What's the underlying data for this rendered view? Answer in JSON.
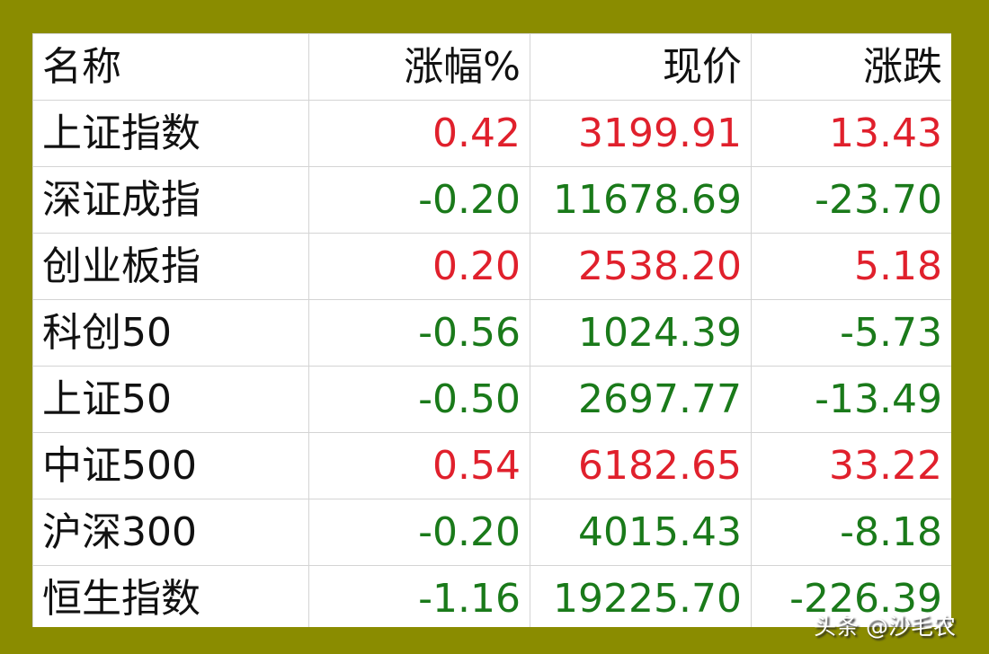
{
  "columns": [
    "名称",
    "涨幅%",
    "现价",
    "涨跌"
  ],
  "rows": [
    {
      "name": "上证指数",
      "pct": "0.42",
      "price": "3199.91",
      "change": "13.43",
      "dir": "up"
    },
    {
      "name": "深证成指",
      "pct": "-0.20",
      "price": "11678.69",
      "change": "-23.70",
      "dir": "down"
    },
    {
      "name": "创业板指",
      "pct": "0.20",
      "price": "2538.20",
      "change": "5.18",
      "dir": "up"
    },
    {
      "name": "科创50",
      "pct": "-0.56",
      "price": "1024.39",
      "change": "-5.73",
      "dir": "down"
    },
    {
      "name": "上证50",
      "pct": "-0.50",
      "price": "2697.77",
      "change": "-13.49",
      "dir": "down"
    },
    {
      "name": "中证500",
      "pct": "0.54",
      "price": "6182.65",
      "change": "33.22",
      "dir": "up"
    },
    {
      "name": "沪深300",
      "pct": "-0.20",
      "price": "4015.43",
      "change": "-8.18",
      "dir": "down"
    },
    {
      "name": "恒生指数",
      "pct": "-1.16",
      "price": "19225.70",
      "change": "-226.39",
      "dir": "down"
    }
  ],
  "colors": {
    "up": "#e0202c",
    "down": "#1a7a1a",
    "frame": "#8a8c00"
  },
  "watermark": "头条 @沙毛农"
}
